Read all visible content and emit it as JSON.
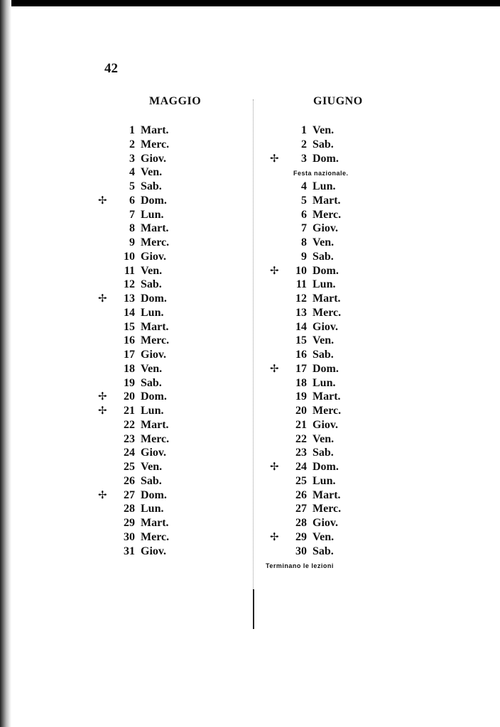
{
  "page_number": "42",
  "months": [
    {
      "name": "MAGGIO",
      "days": [
        {
          "n": "1",
          "d": "Mart.",
          "cross": false
        },
        {
          "n": "2",
          "d": "Merc.",
          "cross": false
        },
        {
          "n": "3",
          "d": "Giov.",
          "cross": false
        },
        {
          "n": "4",
          "d": "Ven.",
          "cross": false
        },
        {
          "n": "5",
          "d": "Sab.",
          "cross": false
        },
        {
          "n": "6",
          "d": "Dom.",
          "cross": true
        },
        {
          "n": "7",
          "d": "Lun.",
          "cross": false
        },
        {
          "n": "8",
          "d": "Mart.",
          "cross": false
        },
        {
          "n": "9",
          "d": "Merc.",
          "cross": false
        },
        {
          "n": "10",
          "d": "Giov.",
          "cross": false
        },
        {
          "n": "11",
          "d": "Ven.",
          "cross": false
        },
        {
          "n": "12",
          "d": "Sab.",
          "cross": false
        },
        {
          "n": "13",
          "d": "Dom.",
          "cross": true
        },
        {
          "n": "14",
          "d": "Lun.",
          "cross": false
        },
        {
          "n": "15",
          "d": "Mart.",
          "cross": false
        },
        {
          "n": "16",
          "d": "Merc.",
          "cross": false
        },
        {
          "n": "17",
          "d": "Giov.",
          "cross": false
        },
        {
          "n": "18",
          "d": "Ven.",
          "cross": false
        },
        {
          "n": "19",
          "d": "Sab.",
          "cross": false
        },
        {
          "n": "20",
          "d": "Dom.",
          "cross": true
        },
        {
          "n": "21",
          "d": "Lun.",
          "cross": true
        },
        {
          "n": "22",
          "d": "Mart.",
          "cross": false
        },
        {
          "n": "23",
          "d": "Merc.",
          "cross": false
        },
        {
          "n": "24",
          "d": "Giov.",
          "cross": false
        },
        {
          "n": "25",
          "d": "Ven.",
          "cross": false
        },
        {
          "n": "26",
          "d": "Sab.",
          "cross": false
        },
        {
          "n": "27",
          "d": "Dom.",
          "cross": true
        },
        {
          "n": "28",
          "d": "Lun.",
          "cross": false
        },
        {
          "n": "29",
          "d": "Mart.",
          "cross": false
        },
        {
          "n": "30",
          "d": "Merc.",
          "cross": false
        },
        {
          "n": "31",
          "d": "Giov.",
          "cross": false
        }
      ]
    },
    {
      "name": "GIUGNO",
      "days": [
        {
          "n": "1",
          "d": "Ven.",
          "cross": false
        },
        {
          "n": "2",
          "d": "Sab.",
          "cross": false
        },
        {
          "n": "3",
          "d": "Dom.",
          "cross": true,
          "note": "Festa nazionale."
        },
        {
          "n": "4",
          "d": "Lun.",
          "cross": false
        },
        {
          "n": "5",
          "d": "Mart.",
          "cross": false
        },
        {
          "n": "6",
          "d": "Merc.",
          "cross": false
        },
        {
          "n": "7",
          "d": "Giov.",
          "cross": false
        },
        {
          "n": "8",
          "d": "Ven.",
          "cross": false
        },
        {
          "n": "9",
          "d": "Sab.",
          "cross": false
        },
        {
          "n": "10",
          "d": "Dom.",
          "cross": true
        },
        {
          "n": "11",
          "d": "Lun.",
          "cross": false
        },
        {
          "n": "12",
          "d": "Mart.",
          "cross": false
        },
        {
          "n": "13",
          "d": "Merc.",
          "cross": false
        },
        {
          "n": "14",
          "d": "Giov.",
          "cross": false
        },
        {
          "n": "15",
          "d": "Ven.",
          "cross": false
        },
        {
          "n": "16",
          "d": "Sab.",
          "cross": false
        },
        {
          "n": "17",
          "d": "Dom.",
          "cross": true
        },
        {
          "n": "18",
          "d": "Lun.",
          "cross": false
        },
        {
          "n": "19",
          "d": "Mart.",
          "cross": false
        },
        {
          "n": "20",
          "d": "Merc.",
          "cross": false
        },
        {
          "n": "21",
          "d": "Giov.",
          "cross": false
        },
        {
          "n": "22",
          "d": "Ven.",
          "cross": false
        },
        {
          "n": "23",
          "d": "Sab.",
          "cross": false
        },
        {
          "n": "24",
          "d": "Dom.",
          "cross": true
        },
        {
          "n": "25",
          "d": "Lun.",
          "cross": false
        },
        {
          "n": "26",
          "d": "Mart.",
          "cross": false
        },
        {
          "n": "27",
          "d": "Merc.",
          "cross": false
        },
        {
          "n": "28",
          "d": "Giov.",
          "cross": false
        },
        {
          "n": "29",
          "d": "Ven.",
          "cross": true
        },
        {
          "n": "30",
          "d": "Sab.",
          "cross": false,
          "note": "Terminano le lezioni"
        }
      ]
    }
  ],
  "cross_symbol": "✢"
}
